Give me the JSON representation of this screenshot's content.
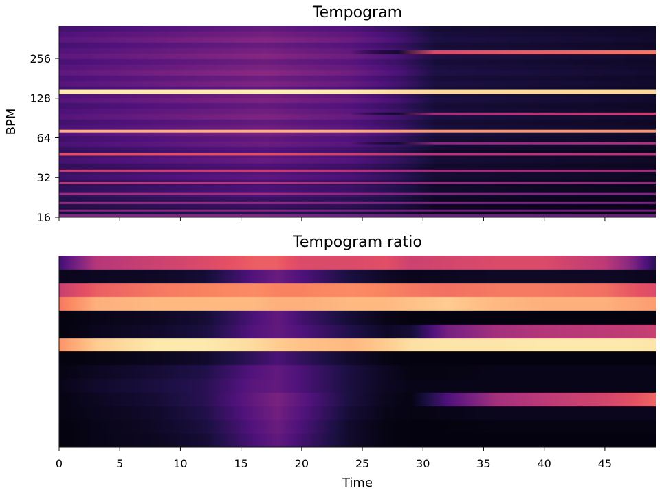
{
  "chart_data": [
    {
      "type": "heatmap",
      "title": "Tempogram",
      "xlabel": "",
      "ylabel": "BPM",
      "y_scale": "log2",
      "ylim": [
        16,
        450
      ],
      "y_ticks": [
        16,
        32,
        64,
        128,
        256
      ],
      "xlim": [
        0,
        49.2
      ],
      "x_ticks": [
        0,
        5,
        10,
        15,
        20,
        25,
        30,
        35,
        40,
        45
      ],
      "x_tick_labels_shown": false,
      "colormap": "magma",
      "background_level": {
        "x": [
          0,
          10,
          17,
          20,
          24,
          28,
          31,
          49.2
        ],
        "value": [
          0.26,
          0.32,
          0.36,
          0.33,
          0.3,
          0.22,
          0.12,
          0.08
        ]
      },
      "bands": [
        {
          "bpm": 143,
          "level": [
            0.96,
            0.96,
            0.97,
            0.97,
            0.96,
            0.93,
            0.92,
            0.92
          ]
        },
        {
          "bpm": 72,
          "level": [
            0.84,
            0.84,
            0.84,
            0.84,
            0.83,
            0.8,
            0.78,
            0.78
          ]
        },
        {
          "bpm": 48,
          "level": [
            0.62,
            0.62,
            0.62,
            0.6,
            0.56,
            0.52,
            0.5,
            0.5
          ]
        },
        {
          "bpm": 36,
          "level": [
            0.55,
            0.55,
            0.55,
            0.53,
            0.5,
            0.46,
            0.45,
            0.45
          ]
        },
        {
          "bpm": 29,
          "level": [
            0.5,
            0.5,
            0.5,
            0.48,
            0.45,
            0.42,
            0.42,
            0.42
          ]
        },
        {
          "bpm": 24,
          "level": [
            0.45,
            0.45,
            0.45,
            0.43,
            0.4,
            0.38,
            0.38,
            0.38
          ]
        },
        {
          "bpm": 20.5,
          "level": [
            0.42,
            0.42,
            0.42,
            0.4,
            0.38,
            0.36,
            0.36,
            0.36
          ]
        },
        {
          "bpm": 18,
          "level": [
            0.4,
            0.4,
            0.4,
            0.38,
            0.36,
            0.34,
            0.34,
            0.34
          ]
        },
        {
          "bpm": 16.5,
          "level": [
            0.38,
            0.38,
            0.38,
            0.36,
            0.34,
            0.32,
            0.32,
            0.32
          ]
        },
        {
          "bpm": 285,
          "level": [
            0.0,
            0.0,
            0.0,
            0.0,
            0.0,
            0.1,
            0.6,
            0.72
          ]
        },
        {
          "bpm": 97,
          "level": [
            0.0,
            0.0,
            0.0,
            0.0,
            0.0,
            0.1,
            0.45,
            0.55
          ]
        },
        {
          "bpm": 58,
          "level": [
            0.0,
            0.0,
            0.0,
            0.0,
            0.0,
            0.1,
            0.4,
            0.48
          ]
        }
      ]
    },
    {
      "type": "heatmap",
      "title": "Tempogram ratio",
      "xlabel": "Time",
      "ylabel": "",
      "xlim": [
        0,
        49.2
      ],
      "x_ticks": [
        0,
        5,
        10,
        15,
        20,
        25,
        30,
        35,
        40,
        45
      ],
      "colormap": "magma",
      "column_times": [
        0,
        3,
        8,
        12,
        16,
        18,
        20,
        24,
        27,
        29,
        32,
        36,
        40,
        45,
        47,
        49.2
      ],
      "rows": [
        [
          0.22,
          0.5,
          0.56,
          0.6,
          0.66,
          0.66,
          0.6,
          0.6,
          0.62,
          0.56,
          0.58,
          0.6,
          0.6,
          0.52,
          0.4,
          0.16
        ],
        [
          0.05,
          0.06,
          0.07,
          0.1,
          0.26,
          0.32,
          0.25,
          0.12,
          0.07,
          0.05,
          0.06,
          0.07,
          0.07,
          0.07,
          0.06,
          0.05
        ],
        [
          0.55,
          0.66,
          0.72,
          0.74,
          0.76,
          0.74,
          0.74,
          0.76,
          0.74,
          0.72,
          0.7,
          0.72,
          0.72,
          0.7,
          0.65,
          0.6
        ],
        [
          0.72,
          0.84,
          0.86,
          0.86,
          0.86,
          0.84,
          0.84,
          0.86,
          0.86,
          0.88,
          0.9,
          0.86,
          0.84,
          0.84,
          0.82,
          0.8
        ],
        [
          0.02,
          0.04,
          0.06,
          0.1,
          0.24,
          0.3,
          0.22,
          0.1,
          0.04,
          0.02,
          0.02,
          0.02,
          0.02,
          0.02,
          0.02,
          0.02
        ],
        [
          0.02,
          0.05,
          0.08,
          0.12,
          0.26,
          0.3,
          0.25,
          0.14,
          0.07,
          0.1,
          0.35,
          0.46,
          0.5,
          0.52,
          0.53,
          0.55
        ],
        [
          0.78,
          0.9,
          0.96,
          0.96,
          0.93,
          0.9,
          0.88,
          0.86,
          0.9,
          0.94,
          0.95,
          0.95,
          0.96,
          0.96,
          0.96,
          0.95
        ],
        [
          0.02,
          0.03,
          0.05,
          0.08,
          0.18,
          0.24,
          0.18,
          0.08,
          0.03,
          0.02,
          0.02,
          0.02,
          0.02,
          0.02,
          0.02,
          0.02
        ],
        [
          0.03,
          0.06,
          0.1,
          0.14,
          0.26,
          0.3,
          0.24,
          0.12,
          0.06,
          0.03,
          0.03,
          0.04,
          0.04,
          0.04,
          0.04,
          0.04
        ],
        [
          0.04,
          0.08,
          0.12,
          0.16,
          0.28,
          0.3,
          0.24,
          0.12,
          0.06,
          0.04,
          0.04,
          0.04,
          0.04,
          0.04,
          0.04,
          0.04
        ],
        [
          0.03,
          0.06,
          0.1,
          0.16,
          0.3,
          0.36,
          0.28,
          0.12,
          0.05,
          0.03,
          0.25,
          0.46,
          0.52,
          0.58,
          0.62,
          0.68
        ],
        [
          0.03,
          0.05,
          0.08,
          0.14,
          0.28,
          0.34,
          0.26,
          0.1,
          0.04,
          0.03,
          0.04,
          0.05,
          0.05,
          0.05,
          0.05,
          0.05
        ],
        [
          0.02,
          0.04,
          0.07,
          0.12,
          0.26,
          0.32,
          0.24,
          0.08,
          0.03,
          0.02,
          0.02,
          0.03,
          0.03,
          0.03,
          0.03,
          0.03
        ],
        [
          0.02,
          0.04,
          0.06,
          0.1,
          0.24,
          0.3,
          0.22,
          0.08,
          0.03,
          0.02,
          0.02,
          0.02,
          0.02,
          0.02,
          0.02,
          0.02
        ]
      ]
    }
  ]
}
